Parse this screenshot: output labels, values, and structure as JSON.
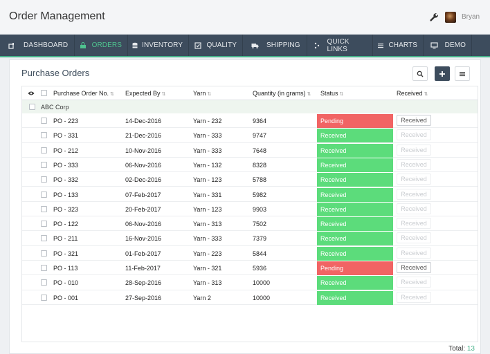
{
  "app": {
    "title": "Order Management",
    "user": "Bryan"
  },
  "nav": [
    {
      "label": "DASHBOARD",
      "icon": "dashboard-icon"
    },
    {
      "label": "ORDERS",
      "icon": "bag-icon",
      "active": true
    },
    {
      "label": "INVENTORY",
      "icon": "database-icon"
    },
    {
      "label": "QUALITY",
      "icon": "checkbox-icon"
    },
    {
      "label": "SHIPPING",
      "icon": "truck-icon"
    },
    {
      "label": "QUICK LINKS",
      "icon": "links-icon"
    },
    {
      "label": "CHARTS",
      "icon": "list-icon"
    },
    {
      "label": "DEMO",
      "icon": "monitor-icon"
    }
  ],
  "page": {
    "title": "Purchase Orders",
    "total_label": "Total:",
    "total_value": "13"
  },
  "table": {
    "columns": [
      "Purchase Order No.",
      "Expected By",
      "Yarn",
      "Quantity (in grams)",
      "Status",
      "Received"
    ],
    "group": "ABC Corp",
    "rows": [
      {
        "po": "PO - 223",
        "date": "14-Dec-2016",
        "yarn": "Yarn - 232",
        "qty": "9364",
        "status": "Pending",
        "received": "Received",
        "enabled": true
      },
      {
        "po": "PO - 331",
        "date": "21-Dec-2016",
        "yarn": "Yarn - 333",
        "qty": "9747",
        "status": "Received",
        "received": "Received",
        "enabled": false
      },
      {
        "po": "PO - 212",
        "date": "10-Nov-2016",
        "yarn": "Yarn - 333",
        "qty": "7648",
        "status": "Received",
        "received": "Received",
        "enabled": false
      },
      {
        "po": "PO - 333",
        "date": "06-Nov-2016",
        "yarn": "Yarn - 132",
        "qty": "8328",
        "status": "Received",
        "received": "Received",
        "enabled": false
      },
      {
        "po": "PO - 332",
        "date": "02-Dec-2016",
        "yarn": "Yarn - 123",
        "qty": "5788",
        "status": "Received",
        "received": "Received",
        "enabled": false
      },
      {
        "po": "PO - 133",
        "date": "07-Feb-2017",
        "yarn": "Yarn - 331",
        "qty": "5982",
        "status": "Received",
        "received": "Received",
        "enabled": false
      },
      {
        "po": "PO - 323",
        "date": "20-Feb-2017",
        "yarn": "Yarn - 123",
        "qty": "9903",
        "status": "Received",
        "received": "Received",
        "enabled": false
      },
      {
        "po": "PO - 122",
        "date": "06-Nov-2016",
        "yarn": "Yarn - 313",
        "qty": "7502",
        "status": "Received",
        "received": "Received",
        "enabled": false
      },
      {
        "po": "PO - 211",
        "date": "16-Nov-2016",
        "yarn": "Yarn - 333",
        "qty": "7379",
        "status": "Received",
        "received": "Received",
        "enabled": false
      },
      {
        "po": "PO - 321",
        "date": "01-Feb-2017",
        "yarn": "Yarn - 223",
        "qty": "5844",
        "status": "Received",
        "received": "Received",
        "enabled": false
      },
      {
        "po": "PO - 113",
        "date": "11-Feb-2017",
        "yarn": "Yarn - 321",
        "qty": "5936",
        "status": "Pending",
        "received": "Received",
        "enabled": true
      },
      {
        "po": "PO - 010",
        "date": "28-Sep-2016",
        "yarn": "Yarn - 313",
        "qty": "10000",
        "status": "Received",
        "received": "Received",
        "enabled": false
      },
      {
        "po": "PO - 001",
        "date": "27-Sep-2016",
        "yarn": "Yarn 2",
        "qty": "10000",
        "status": "Received",
        "received": "Received",
        "enabled": false
      }
    ]
  },
  "colors": {
    "nav_bg": "#3d4c5d",
    "accent": "#46b28a",
    "pending": "#f16464",
    "received": "#5cdc7b"
  }
}
